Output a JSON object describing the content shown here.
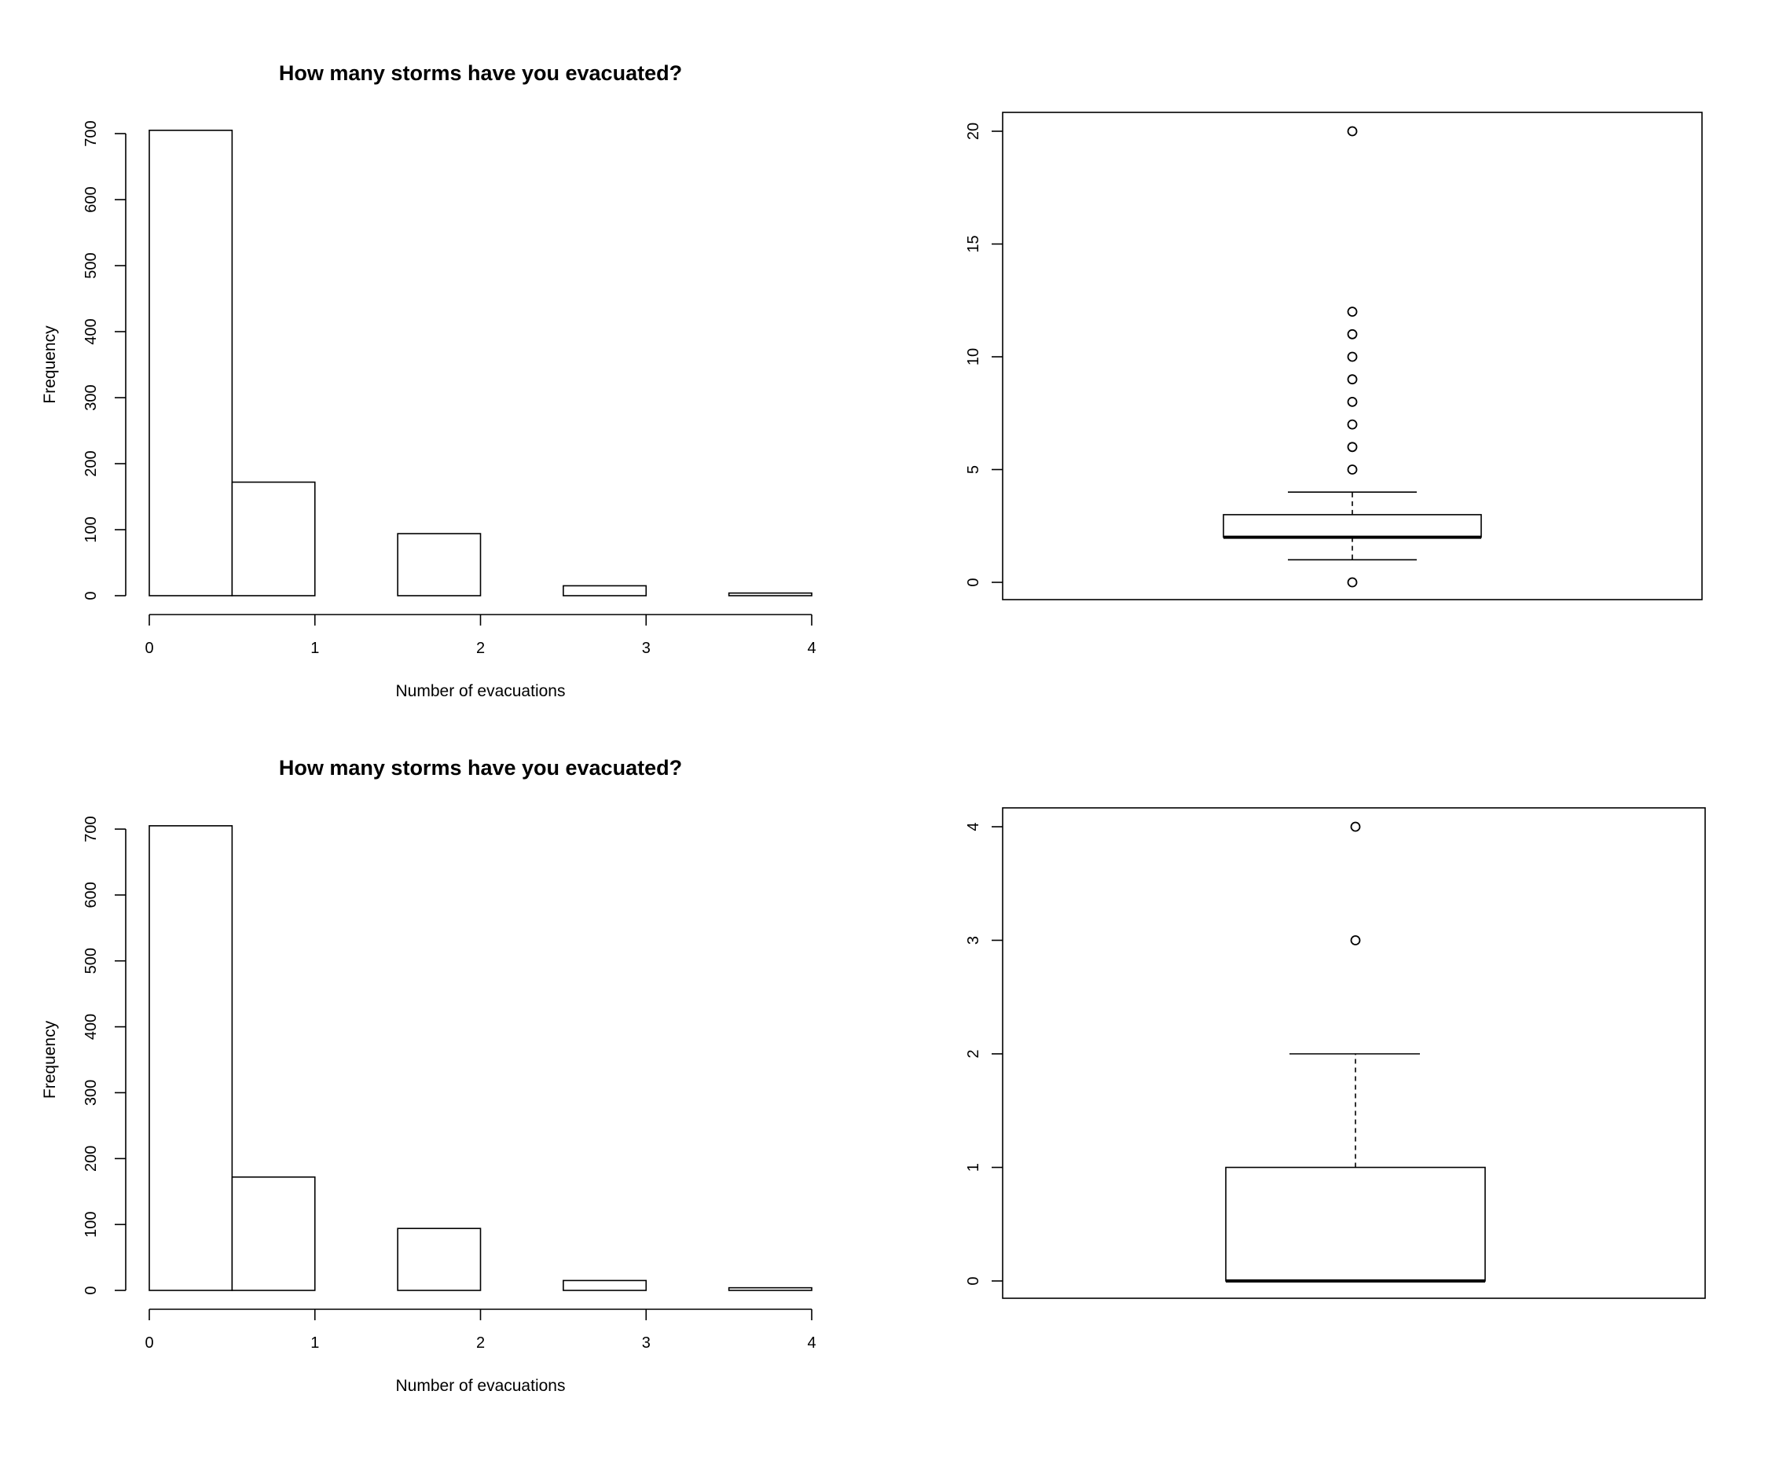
{
  "chart_data": [
    {
      "type": "bar",
      "subtype": "histogram",
      "title": "How many storms have you evacuated?",
      "xlabel": "Number of evacuations",
      "ylabel": "Frequency",
      "bin_edges": [
        0,
        0.5,
        1,
        1.5,
        2,
        2.5,
        3,
        3.5,
        4
      ],
      "values": [
        705,
        172,
        0,
        94,
        0,
        15,
        0,
        4
      ],
      "xlim": [
        0,
        4
      ],
      "ylim": [
        0,
        700
      ],
      "xticks": [
        0,
        1,
        2,
        3,
        4
      ],
      "yticks": [
        0,
        100,
        200,
        300,
        400,
        500,
        600,
        700
      ]
    },
    {
      "type": "box",
      "title": "",
      "ylim": [
        0,
        20
      ],
      "yticks": [
        0,
        5,
        10,
        15,
        20
      ],
      "stats": {
        "whisker_low": 1,
        "q1": 2,
        "median": 2,
        "q3": 3,
        "whisker_high": 4
      },
      "outliers": [
        0,
        5,
        6,
        7,
        8,
        9,
        10,
        11,
        12,
        20
      ]
    },
    {
      "type": "bar",
      "subtype": "histogram",
      "title": "How many storms have you evacuated?",
      "xlabel": "Number of evacuations",
      "ylabel": "Frequency",
      "bin_edges": [
        0,
        0.5,
        1,
        1.5,
        2,
        2.5,
        3,
        3.5,
        4
      ],
      "values": [
        705,
        172,
        0,
        94,
        0,
        15,
        0,
        4
      ],
      "xlim": [
        0,
        4
      ],
      "ylim": [
        0,
        700
      ],
      "xticks": [
        0,
        1,
        2,
        3,
        4
      ],
      "yticks": [
        0,
        100,
        200,
        300,
        400,
        500,
        600,
        700
      ]
    },
    {
      "type": "box",
      "title": "",
      "ylim": [
        0,
        4
      ],
      "yticks": [
        0,
        1,
        2,
        3,
        4
      ],
      "stats": {
        "whisker_low": 0,
        "q1": 0,
        "median": 0,
        "q3": 1,
        "whisker_high": 2
      },
      "outliers": [
        3,
        4
      ]
    }
  ]
}
